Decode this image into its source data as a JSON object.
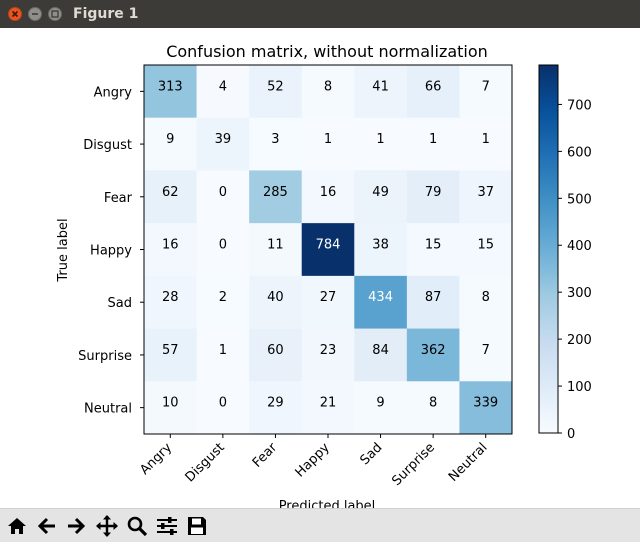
{
  "window": {
    "title": "Figure 1"
  },
  "toolbar": {
    "buttons": [
      {
        "name": "home-button",
        "icon": "home-icon"
      },
      {
        "name": "back-button",
        "icon": "back-arrow-icon"
      },
      {
        "name": "forward-button",
        "icon": "forward-arrow-icon"
      },
      {
        "name": "pan-button",
        "icon": "pan-move-icon"
      },
      {
        "name": "zoom-button",
        "icon": "zoom-magnifier-icon"
      },
      {
        "name": "subplots-button",
        "icon": "sliders-icon"
      },
      {
        "name": "save-button",
        "icon": "save-disk-icon"
      }
    ]
  },
  "chart_data": {
    "type": "heatmap",
    "title": "Confusion matrix, without normalization",
    "xlabel": "Predicted label",
    "ylabel": "True label",
    "row_labels": [
      "Angry",
      "Disgust",
      "Fear",
      "Happy",
      "Sad",
      "Surprise",
      "Neutral"
    ],
    "col_labels": [
      "Angry",
      "Disgust",
      "Fear",
      "Happy",
      "Sad",
      "Surprise",
      "Neutral"
    ],
    "values": [
      [
        313,
        4,
        52,
        8,
        41,
        66,
        7
      ],
      [
        9,
        39,
        3,
        1,
        1,
        1,
        1
      ],
      [
        62,
        0,
        285,
        16,
        49,
        79,
        37
      ],
      [
        16,
        0,
        11,
        784,
        38,
        15,
        15
      ],
      [
        28,
        2,
        40,
        27,
        434,
        87,
        8
      ],
      [
        57,
        1,
        60,
        23,
        84,
        362,
        7
      ],
      [
        10,
        0,
        29,
        21,
        9,
        8,
        339
      ]
    ],
    "colorbar_ticks": [
      "0",
      "100",
      "200",
      "300",
      "400",
      "500",
      "600",
      "700"
    ],
    "colormap": "Blues",
    "value_range": [
      0,
      784
    ]
  }
}
